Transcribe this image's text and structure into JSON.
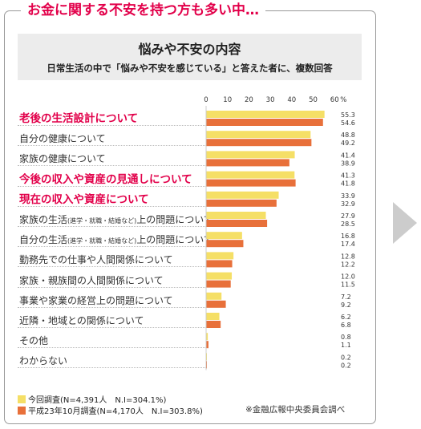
{
  "heading": "お金に関する不安を持つ方も多い中…",
  "header": {
    "title": "悩みや不安の内容",
    "subtitle": "日常生活の中で「悩みや不安を感じている」と答えた者に、複数回答"
  },
  "chart_data": {
    "type": "bar",
    "orientation": "horizontal",
    "x_ticks": [
      "0",
      "10",
      "20",
      "30",
      "40",
      "50",
      "60"
    ],
    "x_unit": "%",
    "xlim": [
      0,
      60
    ],
    "categories": [
      {
        "label": "老後の生活設計について",
        "highlight": true
      },
      {
        "label": "自分の健康について",
        "highlight": false
      },
      {
        "label": "家族の健康について",
        "highlight": false
      },
      {
        "label": "今後の収入や資産の見通しについて",
        "highlight": true
      },
      {
        "label": "現在の収入や資産について",
        "highlight": true
      },
      {
        "label": "家族の生活",
        "note": "(進学・就職・結婚など)",
        "suffix": "上の問題について",
        "highlight": false
      },
      {
        "label": "自分の生活",
        "note": "(進学・就職・結婚など)",
        "suffix": "上の問題について",
        "highlight": false
      },
      {
        "label": "勤務先での仕事や人間関係について",
        "highlight": false
      },
      {
        "label": "家族・親族間の人間関係について",
        "highlight": false
      },
      {
        "label": "事業や家業の経営上の問題について",
        "highlight": false
      },
      {
        "label": "近隣・地域との関係について",
        "highlight": false
      },
      {
        "label": "その他",
        "highlight": false
      },
      {
        "label": "わからない",
        "highlight": false
      }
    ],
    "series": [
      {
        "name": "今回調査(N=4,391人　N.I=304.1%)",
        "color": "#f5df66",
        "values": [
          55.3,
          48.8,
          41.4,
          41.3,
          33.9,
          27.9,
          16.8,
          12.8,
          12.0,
          7.2,
          6.2,
          0.8,
          0.2
        ]
      },
      {
        "name": "平成23年10月調査(N=4,170人　N.I=303.8%)",
        "color": "#e8703a",
        "values": [
          54.6,
          49.2,
          38.9,
          41.8,
          32.9,
          28.5,
          17.4,
          12.2,
          11.5,
          9.2,
          6.8,
          1.1,
          0.2
        ]
      }
    ],
    "value_labels": [
      [
        "55.3",
        "54.6"
      ],
      [
        "48.8",
        "49.2"
      ],
      [
        "41.4",
        "38.9"
      ],
      [
        "41.3",
        "41.8"
      ],
      [
        "33.9",
        "32.9"
      ],
      [
        "27.9",
        "28.5"
      ],
      [
        "16.8",
        "17.4"
      ],
      [
        "12.8",
        "12.2"
      ],
      [
        "12.0",
        "11.5"
      ],
      [
        "7.2",
        "9.2"
      ],
      [
        "6.2",
        "6.8"
      ],
      [
        "0.8",
        "1.1"
      ],
      [
        "0.2",
        "0.2"
      ]
    ]
  },
  "source": "※金融広報中央委員会調べ"
}
